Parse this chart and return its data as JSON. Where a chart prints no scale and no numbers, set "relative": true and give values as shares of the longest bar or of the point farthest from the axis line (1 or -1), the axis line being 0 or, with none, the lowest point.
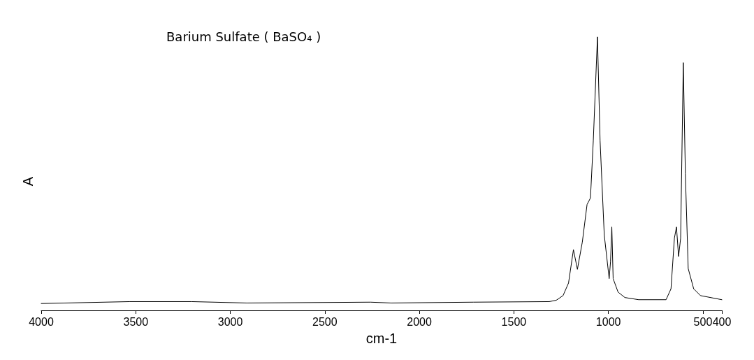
{
  "chart_data": {
    "type": "line",
    "title": "Barium Sulfate ( BaSO₄ )",
    "xlabel": "cm-1",
    "ylabel": "A",
    "relative": true,
    "xlim": [
      4000,
      400
    ],
    "xticks": [
      4000,
      3500,
      3000,
      2500,
      2000,
      1500,
      1000,
      500,
      400
    ],
    "grid": false,
    "marker": "none",
    "line_style": "solid",
    "series": [
      {
        "color": "#000000",
        "x": [
          4000,
          3531,
          3204,
          2913,
          2258,
          2149,
          1713,
          1313,
          1276,
          1240,
          1211,
          1185,
          1164,
          1138,
          1113,
          1095,
          1080,
          1058,
          1044,
          1022,
          996,
          989,
          982,
          975,
          949,
          913,
          840,
          695,
          669,
          651,
          640,
          629,
          618,
          604,
          593,
          578,
          549,
          513,
          400
        ],
        "values": [
          0.025,
          0.032,
          0.032,
          0.027,
          0.03,
          0.027,
          0.03,
          0.032,
          0.037,
          0.054,
          0.1,
          0.222,
          0.15,
          0.25,
          0.387,
          0.411,
          0.62,
          1.0,
          0.62,
          0.276,
          0.116,
          0.177,
          0.305,
          0.116,
          0.067,
          0.047,
          0.039,
          0.039,
          0.079,
          0.264,
          0.305,
          0.197,
          0.264,
          0.906,
          0.5,
          0.153,
          0.079,
          0.054,
          0.039
        ]
      }
    ]
  }
}
